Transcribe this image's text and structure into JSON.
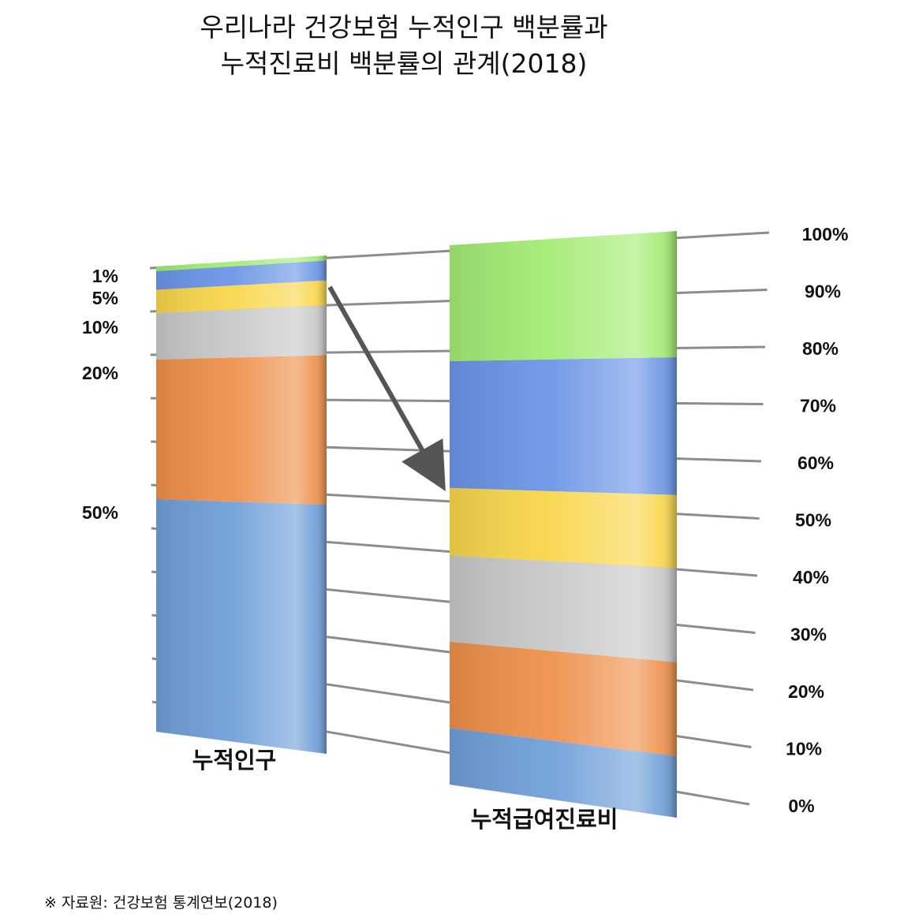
{
  "title": {
    "line1": "우리나라 건강보험 누적인구 백분률과",
    "line2": "누적진료비 백분률의 관계(2018)"
  },
  "source_note": "※ 자료원: 건강보험 통계연보(2018)",
  "chart_data": {
    "type": "bar",
    "stacked": true,
    "categories": [
      "누적인구",
      "누적급여진료비"
    ],
    "segments": [
      {
        "population_pct": 50,
        "expense_pct": 10.5,
        "color": "#6f9fd8"
      },
      {
        "population_pct": 30,
        "expense_pct": 16,
        "color": "#ee904b"
      },
      {
        "population_pct": 10,
        "expense_pct": 16,
        "color": "#c8c8c8"
      },
      {
        "population_pct": 5,
        "expense_pct": 12.5,
        "color": "#f9d64b"
      },
      {
        "population_pct": 4,
        "expense_pct": 23.5,
        "color": "#6a95e6"
      },
      {
        "population_pct": 1,
        "expense_pct": 21.5,
        "color": "#a3ec74"
      }
    ],
    "population_axis_labels": [
      "1%",
      "5%",
      "10%",
      "20%",
      "50%"
    ],
    "expense_axis_labels": [
      "0%",
      "10%",
      "20%",
      "30%",
      "40%",
      "50%",
      "60%",
      "70%",
      "80%",
      "90%",
      "100%"
    ],
    "ylim": [
      0,
      100
    ],
    "arrow": {
      "from": "누적인구",
      "to": "누적급여진료비"
    }
  }
}
